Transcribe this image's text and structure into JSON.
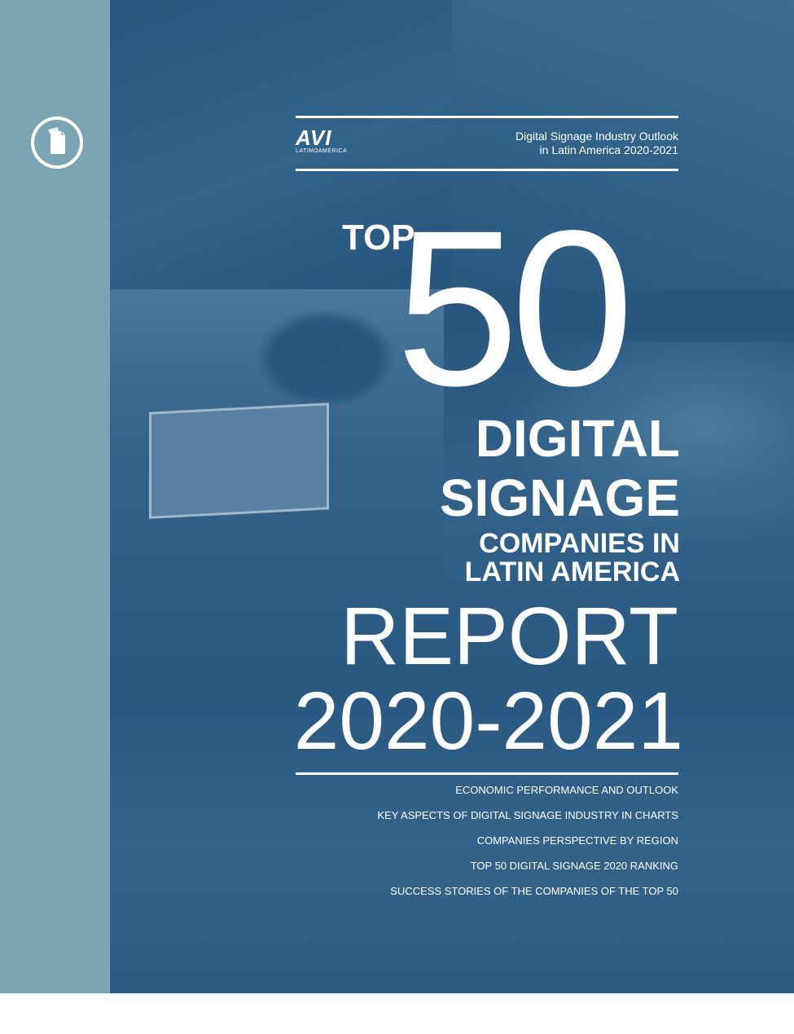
{
  "logo": {
    "mark": "AVI",
    "subtitle": "LATINOAMÉRICA"
  },
  "outlook": {
    "line1": "Digital Signage Industry Outlook",
    "line2": "in Latin America 2020-2021"
  },
  "title": {
    "top": "TOP",
    "number": "50",
    "line1": "DIGITAL",
    "line2": "SIGNAGE",
    "line3": "COMPANIES IN",
    "line4": "LATIN AMERICA",
    "report": "REPORT",
    "years": "2020-2021"
  },
  "contents": [
    "ECONOMIC PERFORMANCE AND OUTLOOK",
    "KEY ASPECTS OF DIGITAL SIGNAGE INDUSTRY IN CHARTS",
    "COMPANIES PERSPECTIVE BY REGION",
    "TOP 50 DIGITAL SIGNAGE 2020 RANKING",
    "SUCCESS STORIES OF THE COMPANIES OF THE TOP 50"
  ],
  "colors": {
    "sidebar": "#7ba5b2",
    "cover_tint": "#2b5b82",
    "text": "#ffffff"
  },
  "icons": {
    "document": "document-icon"
  }
}
